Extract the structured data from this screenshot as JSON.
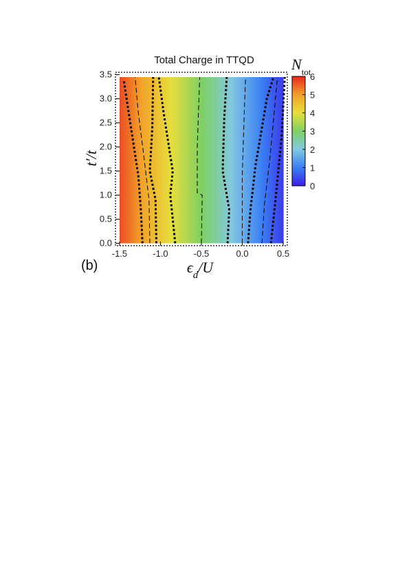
{
  "panel_label": "(b)",
  "chart_data": {
    "type": "heatmap",
    "title": "Total Charge  in  TTQD",
    "xlabel": "ϵd/U",
    "ylabel": "t′/t",
    "colorbar_label": "Ntot",
    "xlim": [
      -1.55,
      0.55
    ],
    "ylim": [
      -0.05,
      3.55
    ],
    "x_ticks": [
      -1.5,
      -1.0,
      -0.5,
      0.0,
      0.5
    ],
    "x_tick_labels": [
      "-1.5",
      "-1.0",
      "-0.5",
      "0.0",
      "0.5"
    ],
    "y_ticks": [
      0.0,
      0.5,
      1.0,
      1.5,
      2.0,
      2.5,
      3.0,
      3.5
    ],
    "y_tick_labels": [
      "0.0",
      "0.5",
      "1.0",
      "1.5",
      "2.0",
      "2.5",
      "3.0",
      "3.5"
    ],
    "colorbar": {
      "min": 0,
      "max": 6,
      "ticks": [
        0,
        1,
        2,
        3,
        4,
        5,
        6
      ],
      "tick_labels": [
        "0",
        "1",
        "2",
        "3",
        "4",
        "5",
        "6"
      ]
    },
    "colormap": [
      "#3c1fe6",
      "#3a7ff2",
      "#82c8e2",
      "#7ed063",
      "#e6df3c",
      "#f2a02a",
      "#e8281c"
    ],
    "grid": false,
    "contours": [
      {
        "style": "thick",
        "points": [
          [
            -1.22,
            0.0
          ],
          [
            -1.24,
            0.7
          ],
          [
            -1.27,
            1.4
          ],
          [
            -1.36,
            2.4
          ],
          [
            -1.45,
            3.4
          ]
        ]
      },
      {
        "style": "thin",
        "points": [
          [
            -1.13,
            0.0
          ],
          [
            -1.14,
            0.9
          ],
          [
            -1.21,
            1.9
          ],
          [
            -1.27,
            2.7
          ],
          [
            -1.31,
            3.45
          ]
        ]
      },
      {
        "style": "thick",
        "points": [
          [
            -1.05,
            0.0
          ],
          [
            -1.06,
            0.9
          ],
          [
            -1.13,
            1.5
          ],
          [
            -1.1,
            2.4
          ],
          [
            -1.09,
            3.45
          ]
        ]
      },
      {
        "style": "thick",
        "points": [
          [
            -0.82,
            0.0
          ],
          [
            -0.88,
            1.0
          ],
          [
            -0.85,
            1.5
          ],
          [
            -0.96,
            2.7
          ],
          [
            -1.02,
            3.45
          ]
        ]
      },
      {
        "style": "thin",
        "points": [
          [
            -0.5,
            0.0
          ],
          [
            -0.49,
            1.0
          ],
          [
            -0.55,
            1.05
          ],
          [
            -0.55,
            2.0
          ],
          [
            -0.52,
            3.45
          ]
        ]
      },
      {
        "style": "thick",
        "points": [
          [
            -0.18,
            0.0
          ],
          [
            -0.16,
            0.7
          ],
          [
            -0.24,
            1.5
          ],
          [
            -0.22,
            2.6
          ],
          [
            -0.19,
            3.45
          ]
        ]
      },
      {
        "style": "thin",
        "points": [
          [
            0.0,
            0.0
          ],
          [
            0.0,
            1.4
          ],
          [
            0.02,
            2.5
          ],
          [
            0.04,
            3.45
          ]
        ]
      },
      {
        "style": "thick",
        "points": [
          [
            0.07,
            0.0
          ],
          [
            0.1,
            0.7
          ],
          [
            0.16,
            1.6
          ],
          [
            0.3,
            3.0
          ],
          [
            0.38,
            3.45
          ]
        ]
      },
      {
        "style": "thin",
        "points": [
          [
            0.24,
            0.0
          ],
          [
            0.27,
            0.8
          ],
          [
            0.34,
            1.8
          ],
          [
            0.43,
            3.45
          ]
        ]
      },
      {
        "style": "thick",
        "points": [
          [
            0.35,
            0.0
          ],
          [
            0.4,
            0.8
          ],
          [
            0.48,
            2.2
          ],
          [
            0.52,
            3.45
          ]
        ]
      }
    ]
  }
}
